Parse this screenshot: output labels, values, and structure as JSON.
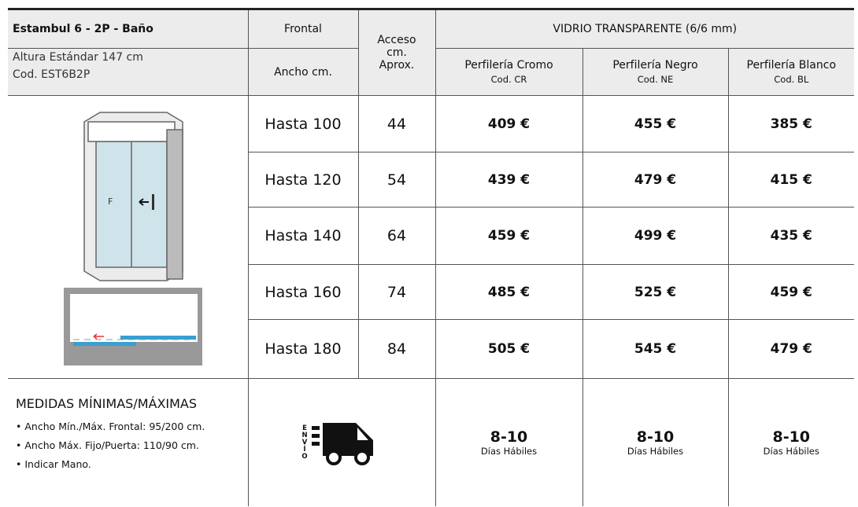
{
  "header": {
    "title": "Estambul 6 - 2P - Baño",
    "subtitle": [
      "Altura Estándar 147 cm",
      "Cod. EST6B2P"
    ],
    "frontal": "Frontal",
    "ancho": "Ancho cm.",
    "acceso": [
      "Acceso",
      "cm.",
      "Aprox."
    ],
    "glass": "VIDRIO TRANSPARENTE (6/6 mm)",
    "finishes": [
      {
        "name": "Perfilería Cromo",
        "code": "Cod. CR"
      },
      {
        "name": "Perfilería Negro",
        "code": "Cod. NE"
      },
      {
        "name": "Perfilería Blanco",
        "code": "Cod. BL"
      }
    ]
  },
  "rows": [
    {
      "frontal": "Hasta 100",
      "acceso": 44,
      "prices": [
        "409 €",
        "455 €",
        "385 €"
      ]
    },
    {
      "frontal": "Hasta 120",
      "acceso": 54,
      "prices": [
        "439 €",
        "479 €",
        "415 €"
      ]
    },
    {
      "frontal": "Hasta 140",
      "acceso": 64,
      "prices": [
        "459 €",
        "499 €",
        "435 €"
      ]
    },
    {
      "frontal": "Hasta 160",
      "acceso": 74,
      "prices": [
        "485 €",
        "525 €",
        "459 €"
      ]
    },
    {
      "frontal": "Hasta 180",
      "acceso": 84,
      "prices": [
        "505 €",
        "545 €",
        "479 €"
      ]
    }
  ],
  "footer": {
    "heading": "MEDIDAS MÍNIMAS/MÁXIMAS",
    "bullets": [
      "• Ancho Mín./Máx. Frontal: 95/200 cm.",
      "• Ancho Máx. Fijo/Puerta: 110/90 cm.",
      "• Indicar Mano."
    ],
    "shipping": "ENVÍO",
    "delivery": [
      {
        "days": "8-10",
        "label": "Días Hábiles"
      },
      {
        "days": "8-10",
        "label": "Días Hábiles"
      },
      {
        "days": "8-10",
        "label": "Días Hábiles"
      }
    ]
  }
}
